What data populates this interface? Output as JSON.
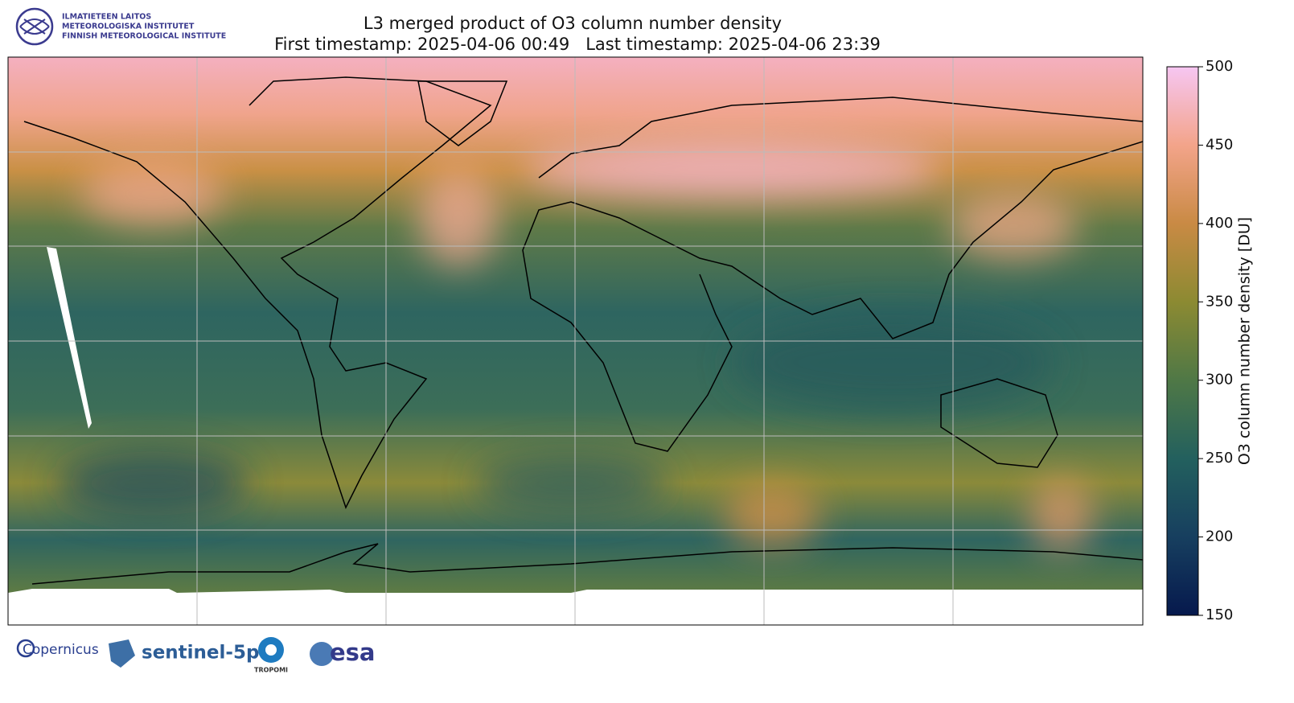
{
  "header": {
    "institute": [
      "ILMATIETEEN LAITOS",
      "METEOROLOGISKA INSTITUTET",
      "FINNISH METEOROLOGICAL INSTITUTE"
    ],
    "title": "L3 merged product of O3 column number density",
    "subtitle": "First timestamp: 2025-04-06 00:49   Last timestamp: 2025-04-06 23:39"
  },
  "colorbar": {
    "label": "O3 column number density [DU]",
    "lim": [
      150,
      500
    ],
    "ticks": [
      150,
      200,
      250,
      300,
      350,
      400,
      450,
      500
    ],
    "colors": [
      "#06194d",
      "#173f5f",
      "#23605e",
      "#4f7846",
      "#8c8a32",
      "#c98a44",
      "#f3a48a",
      "#f6c6f2"
    ]
  },
  "footer": {
    "logos": [
      "Copernicus",
      "sentinel-5p",
      "TROPOMI",
      "esa"
    ]
  }
}
